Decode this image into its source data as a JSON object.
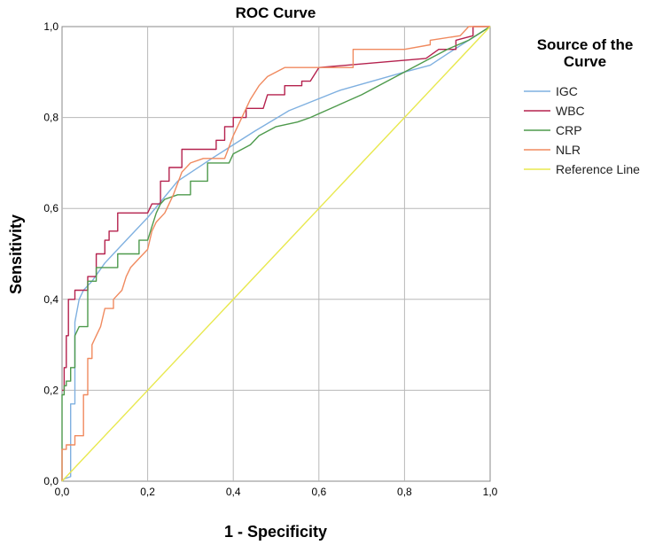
{
  "chart_data": {
    "type": "line",
    "title": "ROC Curve",
    "xlabel": "1 - Specificity",
    "ylabel": "Sensitivity",
    "xlim": [
      0,
      1
    ],
    "ylim": [
      0,
      1
    ],
    "grid": true,
    "legend_position": "right",
    "legend_title_lines": [
      "Source of the",
      "Curve"
    ],
    "tick_labels": [
      "0,0",
      "0,2",
      "0,4",
      "0,6",
      "0,8",
      "1,0"
    ],
    "tick_values": [
      0,
      0.2,
      0.4,
      0.6,
      0.8,
      1.0
    ],
    "series": [
      {
        "name": "IGC",
        "color": "#7fb0e0",
        "points": [
          [
            0,
            0
          ],
          [
            0.005,
            0.005
          ],
          [
            0.02,
            0.01
          ],
          [
            0.02,
            0.17
          ],
          [
            0.03,
            0.17
          ],
          [
            0.03,
            0.35
          ],
          [
            0.04,
            0.4
          ],
          [
            0.05,
            0.42
          ],
          [
            0.07,
            0.44
          ],
          [
            0.1,
            0.48
          ],
          [
            0.15,
            0.53
          ],
          [
            0.2,
            0.58
          ],
          [
            0.27,
            0.66
          ],
          [
            0.35,
            0.71
          ],
          [
            0.45,
            0.77
          ],
          [
            0.53,
            0.815
          ],
          [
            0.65,
            0.86
          ],
          [
            0.8,
            0.9
          ],
          [
            0.86,
            0.915
          ],
          [
            0.9,
            0.94
          ],
          [
            1.0,
            1.0
          ]
        ]
      },
      {
        "name": "WBC",
        "color": "#b5224e",
        "points": [
          [
            0,
            0.2
          ],
          [
            0.005,
            0.2
          ],
          [
            0.005,
            0.25
          ],
          [
            0.01,
            0.25
          ],
          [
            0.01,
            0.32
          ],
          [
            0.015,
            0.32
          ],
          [
            0.015,
            0.4
          ],
          [
            0.03,
            0.4
          ],
          [
            0.03,
            0.42
          ],
          [
            0.06,
            0.42
          ],
          [
            0.06,
            0.45
          ],
          [
            0.08,
            0.45
          ],
          [
            0.08,
            0.5
          ],
          [
            0.1,
            0.5
          ],
          [
            0.1,
            0.53
          ],
          [
            0.11,
            0.53
          ],
          [
            0.11,
            0.55
          ],
          [
            0.13,
            0.55
          ],
          [
            0.13,
            0.59
          ],
          [
            0.2,
            0.59
          ],
          [
            0.21,
            0.61
          ],
          [
            0.23,
            0.61
          ],
          [
            0.23,
            0.66
          ],
          [
            0.25,
            0.66
          ],
          [
            0.25,
            0.69
          ],
          [
            0.28,
            0.69
          ],
          [
            0.28,
            0.73
          ],
          [
            0.36,
            0.73
          ],
          [
            0.36,
            0.75
          ],
          [
            0.38,
            0.75
          ],
          [
            0.38,
            0.78
          ],
          [
            0.4,
            0.78
          ],
          [
            0.4,
            0.8
          ],
          [
            0.43,
            0.8
          ],
          [
            0.43,
            0.82
          ],
          [
            0.47,
            0.82
          ],
          [
            0.48,
            0.85
          ],
          [
            0.52,
            0.85
          ],
          [
            0.52,
            0.87
          ],
          [
            0.56,
            0.87
          ],
          [
            0.56,
            0.88
          ],
          [
            0.58,
            0.88
          ],
          [
            0.6,
            0.91
          ],
          [
            0.85,
            0.93
          ],
          [
            0.88,
            0.95
          ],
          [
            0.92,
            0.95
          ],
          [
            0.92,
            0.97
          ],
          [
            0.96,
            0.98
          ],
          [
            0.96,
            1.0
          ],
          [
            1.0,
            1.0
          ]
        ]
      },
      {
        "name": "CRP",
        "color": "#4e9a4c",
        "points": [
          [
            0,
            0
          ],
          [
            0,
            0.19
          ],
          [
            0.005,
            0.19
          ],
          [
            0.005,
            0.21
          ],
          [
            0.01,
            0.21
          ],
          [
            0.01,
            0.22
          ],
          [
            0.02,
            0.22
          ],
          [
            0.02,
            0.25
          ],
          [
            0.03,
            0.25
          ],
          [
            0.03,
            0.32
          ],
          [
            0.04,
            0.34
          ],
          [
            0.06,
            0.34
          ],
          [
            0.06,
            0.44
          ],
          [
            0.08,
            0.44
          ],
          [
            0.08,
            0.47
          ],
          [
            0.13,
            0.47
          ],
          [
            0.13,
            0.5
          ],
          [
            0.18,
            0.5
          ],
          [
            0.18,
            0.53
          ],
          [
            0.2,
            0.53
          ],
          [
            0.21,
            0.56
          ],
          [
            0.22,
            0.59
          ],
          [
            0.23,
            0.61
          ],
          [
            0.24,
            0.62
          ],
          [
            0.27,
            0.63
          ],
          [
            0.3,
            0.63
          ],
          [
            0.3,
            0.66
          ],
          [
            0.34,
            0.66
          ],
          [
            0.34,
            0.7
          ],
          [
            0.39,
            0.7
          ],
          [
            0.4,
            0.72
          ],
          [
            0.44,
            0.74
          ],
          [
            0.46,
            0.76
          ],
          [
            0.5,
            0.78
          ],
          [
            0.55,
            0.79
          ],
          [
            0.58,
            0.8
          ],
          [
            0.7,
            0.85
          ],
          [
            0.86,
            0.93
          ],
          [
            0.9,
            0.95
          ],
          [
            0.95,
            0.97
          ],
          [
            1.0,
            1.0
          ]
        ]
      },
      {
        "name": "NLR",
        "color": "#f08a5f",
        "points": [
          [
            0,
            0
          ],
          [
            0,
            0.07
          ],
          [
            0.01,
            0.07
          ],
          [
            0.01,
            0.08
          ],
          [
            0.03,
            0.08
          ],
          [
            0.03,
            0.1
          ],
          [
            0.05,
            0.1
          ],
          [
            0.05,
            0.19
          ],
          [
            0.06,
            0.19
          ],
          [
            0.06,
            0.27
          ],
          [
            0.07,
            0.27
          ],
          [
            0.07,
            0.3
          ],
          [
            0.08,
            0.32
          ],
          [
            0.09,
            0.34
          ],
          [
            0.1,
            0.38
          ],
          [
            0.12,
            0.38
          ],
          [
            0.12,
            0.4
          ],
          [
            0.14,
            0.42
          ],
          [
            0.15,
            0.45
          ],
          [
            0.16,
            0.47
          ],
          [
            0.18,
            0.49
          ],
          [
            0.2,
            0.51
          ],
          [
            0.21,
            0.55
          ],
          [
            0.22,
            0.57
          ],
          [
            0.24,
            0.59
          ],
          [
            0.26,
            0.63
          ],
          [
            0.28,
            0.68
          ],
          [
            0.3,
            0.7
          ],
          [
            0.33,
            0.71
          ],
          [
            0.38,
            0.71
          ],
          [
            0.4,
            0.76
          ],
          [
            0.42,
            0.8
          ],
          [
            0.44,
            0.84
          ],
          [
            0.46,
            0.87
          ],
          [
            0.48,
            0.89
          ],
          [
            0.52,
            0.91
          ],
          [
            0.68,
            0.91
          ],
          [
            0.68,
            0.95
          ],
          [
            0.8,
            0.95
          ],
          [
            0.86,
            0.96
          ],
          [
            0.86,
            0.97
          ],
          [
            0.93,
            0.98
          ],
          [
            0.95,
            1.0
          ],
          [
            1.0,
            1.0
          ]
        ]
      },
      {
        "name": "Reference Line",
        "color": "#e8e84e",
        "points": [
          [
            0,
            0
          ],
          [
            1,
            1
          ]
        ]
      }
    ]
  }
}
